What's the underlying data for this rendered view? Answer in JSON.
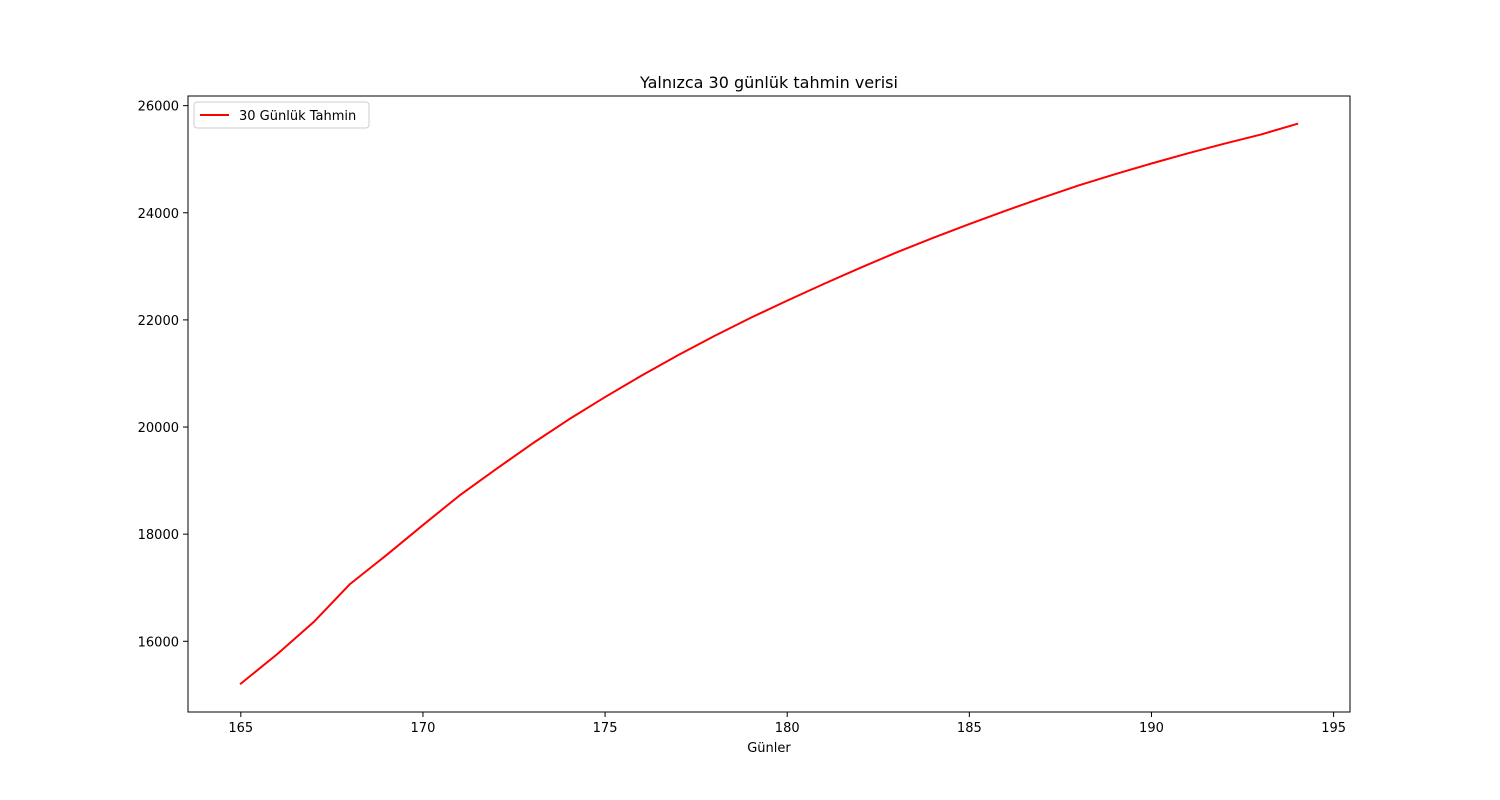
{
  "chart_data": {
    "type": "line",
    "title": "Yalnızca 30 günlük tahmin verisi",
    "xlabel": "Günler",
    "ylabel": "",
    "xlim": [
      163.55,
      195.45
    ],
    "ylim": [
      14680,
      26180
    ],
    "x_ticks": [
      165,
      170,
      175,
      180,
      185,
      190,
      195
    ],
    "y_ticks": [
      16000,
      18000,
      20000,
      22000,
      24000,
      26000
    ],
    "x_tick_labels": [
      "165",
      "170",
      "175",
      "180",
      "185",
      "190",
      "195"
    ],
    "y_tick_labels": [
      "16000",
      "18000",
      "20000",
      "22000",
      "24000",
      "26000"
    ],
    "grid": false,
    "legend_position": "upper-left",
    "series": [
      {
        "name": "30 Günlük Tahmin",
        "color": "#ff0000",
        "x": [
          165,
          166,
          167,
          168,
          169,
          170,
          171,
          172,
          173,
          174,
          175,
          176,
          177,
          178,
          179,
          180,
          181,
          182,
          183,
          184,
          185,
          186,
          187,
          188,
          189,
          190,
          191,
          192,
          193,
          194
        ],
        "y": [
          15210,
          15760,
          16360,
          17070,
          17610,
          18170,
          18720,
          19210,
          19690,
          20140,
          20560,
          20960,
          21340,
          21700,
          22040,
          22360,
          22670,
          22970,
          23260,
          23530,
          23790,
          24040,
          24280,
          24510,
          24720,
          24920,
          25110,
          25290,
          25460,
          25660
        ]
      }
    ]
  }
}
